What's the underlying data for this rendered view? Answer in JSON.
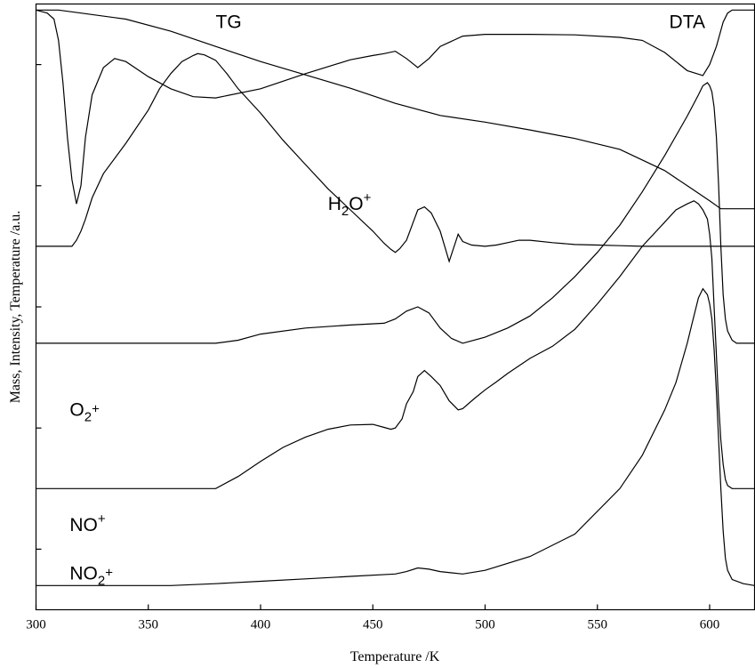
{
  "chart_data": {
    "type": "line",
    "title": "",
    "xlabel": "Temperature /K",
    "ylabel": "Mass, Intensity, Temperature /a.u.",
    "xlim": [
      300,
      620
    ],
    "ylim": [
      0,
      100
    ],
    "x_ticks": [
      300,
      350,
      400,
      450,
      500,
      550,
      600
    ],
    "x_tick_labels": [
      "300",
      "350",
      "400",
      "450",
      "500",
      "550",
      "600"
    ],
    "y_ticks": [
      10,
      30,
      50,
      70,
      90
    ],
    "y_tick_labels_shown": false,
    "grid": false,
    "legend": "none",
    "annotations": [
      {
        "text": "TG",
        "x": 380,
        "y": 96
      },
      {
        "text": "DTA",
        "x": 582,
        "y": 96
      },
      {
        "text": "H2O+",
        "base": "H",
        "sub": "2",
        "mid": "O",
        "sup": "+",
        "x": 430,
        "y": 66
      },
      {
        "text": "O2+",
        "base": "O",
        "sub": "2",
        "mid": "",
        "sup": "+",
        "x": 315,
        "y": 32
      },
      {
        "text": "NO+",
        "base": "NO",
        "sub": "",
        "mid": "",
        "sup": "+",
        "x": 315,
        "y": 13
      },
      {
        "text": "NO2+",
        "base": "NO",
        "sub": "2",
        "mid": "",
        "sup": "+",
        "x": 315,
        "y": 5
      }
    ],
    "series": [
      {
        "x": [
          300,
          310,
          320,
          340,
          360,
          380,
          400,
          420,
          440,
          460,
          480,
          500,
          520,
          540,
          560,
          580,
          590,
          600,
          605,
          610,
          620
        ],
        "values": [
          99,
          99,
          98.5,
          97.5,
          95.5,
          93,
          90.5,
          88.3,
          86.1,
          83.6,
          81.6,
          80.5,
          79.2,
          77.8,
          76,
          72.5,
          70,
          67.5,
          66.2,
          66.2,
          66.2
        ]
      },
      {
        "x": [
          300,
          305,
          308,
          310,
          312,
          314,
          316,
          318,
          320,
          322,
          325,
          330,
          335,
          340,
          350,
          360,
          370,
          380,
          400,
          420,
          440,
          450,
          455,
          460,
          465,
          470,
          475,
          480,
          490,
          500,
          520,
          540,
          560,
          570,
          580,
          590,
          597,
          600,
          603,
          606,
          608,
          610,
          612,
          620
        ],
        "values": [
          99,
          98.5,
          97.5,
          94,
          87,
          78,
          71,
          67,
          70,
          78,
          85,
          89.5,
          91,
          90.5,
          88,
          86,
          84.7,
          84.5,
          86,
          88.5,
          90.8,
          91.5,
          91.8,
          92.2,
          91,
          89.5,
          91,
          93,
          94.7,
          95,
          95,
          94.9,
          94.5,
          94,
          92,
          89,
          88.2,
          90,
          93,
          97,
          98.5,
          99,
          99,
          99
        ]
      },
      {
        "x": [
          300,
          310,
          316,
          318,
          320,
          322,
          325,
          330,
          340,
          350,
          355,
          360,
          365,
          370,
          372,
          375,
          380,
          385,
          390,
          400,
          410,
          420,
          430,
          440,
          450,
          455,
          458,
          460,
          462,
          465,
          468,
          470,
          473,
          476,
          480,
          484,
          488,
          490,
          494,
          500,
          505,
          510,
          515,
          520,
          530,
          540,
          550,
          560,
          570,
          580,
          585,
          590,
          595,
          598,
          600,
          602,
          604,
          605,
          606,
          608,
          610,
          615,
          620
        ],
        "values": [
          60,
          60,
          60,
          61,
          62.5,
          64.5,
          68,
          72,
          77,
          82.5,
          86,
          88.5,
          90.5,
          91.5,
          91.8,
          91.6,
          90.7,
          88.5,
          86,
          82,
          77.5,
          73.5,
          69.5,
          66,
          62.5,
          60.5,
          59.5,
          59,
          59.6,
          61,
          64,
          66,
          66.5,
          65.5,
          62.5,
          57.5,
          62,
          60.8,
          60.2,
          60,
          60.2,
          60.6,
          61,
          61,
          60.6,
          60.3,
          60.2,
          60.1,
          60,
          60,
          60,
          60,
          60,
          60,
          60,
          60,
          60,
          60,
          60,
          60,
          60,
          60,
          60
        ]
      },
      {
        "x": [
          300,
          320,
          340,
          360,
          380,
          390,
          400,
          420,
          440,
          455,
          460,
          465,
          470,
          475,
          480,
          485,
          490,
          500,
          510,
          520,
          530,
          540,
          550,
          560,
          570,
          580,
          590,
          595,
          597,
          599,
          600,
          601,
          602,
          603,
          604,
          605,
          606,
          607,
          608,
          610,
          612,
          615,
          620
        ],
        "values": [
          44,
          44,
          44,
          44,
          44,
          44.5,
          45.5,
          46.5,
          47,
          47.3,
          48,
          49.3,
          50,
          49,
          46.5,
          44.8,
          44,
          45,
          46.5,
          48.5,
          51.5,
          55,
          59,
          63.5,
          69,
          75,
          81.5,
          85,
          86.5,
          87,
          86.5,
          85.5,
          83,
          78,
          70,
          60,
          52,
          48,
          46,
          44.5,
          44,
          44,
          44
        ]
      },
      {
        "x": [
          300,
          320,
          340,
          360,
          380,
          390,
          400,
          410,
          420,
          430,
          440,
          450,
          455,
          458,
          460,
          463,
          465,
          468,
          470,
          473,
          476,
          480,
          484,
          488,
          490,
          495,
          500,
          505,
          510,
          520,
          530,
          540,
          550,
          560,
          570,
          580,
          585,
          590,
          593,
          595,
          597,
          599,
          600,
          601,
          602,
          603,
          604,
          605,
          606,
          607,
          608,
          610,
          615,
          620
        ],
        "values": [
          20,
          20,
          20,
          20,
          20,
          22,
          24.5,
          26.8,
          28.5,
          29.8,
          30.5,
          30.6,
          30.1,
          29.8,
          30,
          31.5,
          34,
          36,
          38.5,
          39.5,
          38.5,
          37,
          34.5,
          33,
          33.2,
          34.8,
          36.3,
          37.6,
          39,
          41.5,
          43.5,
          46.3,
          50.5,
          55,
          60,
          64,
          66,
          67,
          67.5,
          67,
          66,
          64.5,
          62,
          58,
          50,
          42,
          34,
          28,
          24,
          21.5,
          20.5,
          20,
          20,
          20
        ]
      },
      {
        "x": [
          300,
          320,
          340,
          360,
          380,
          400,
          420,
          440,
          460,
          465,
          470,
          475,
          480,
          490,
          500,
          520,
          540,
          560,
          570,
          580,
          585,
          590,
          592,
          595,
          597,
          599,
          600,
          601,
          602,
          603,
          604,
          605,
          606,
          607,
          608,
          610,
          615,
          620
        ],
        "values": [
          4,
          4,
          4,
          4,
          4.3,
          4.7,
          5.1,
          5.5,
          5.9,
          6.3,
          6.9,
          6.7,
          6.3,
          5.9,
          6.5,
          8.8,
          12.5,
          20,
          25.5,
          33,
          37.5,
          44,
          47,
          51.5,
          53,
          52,
          50.5,
          48,
          43,
          36,
          28,
          20,
          13,
          8.5,
          6.5,
          5,
          4.3,
          4
        ]
      }
    ]
  }
}
